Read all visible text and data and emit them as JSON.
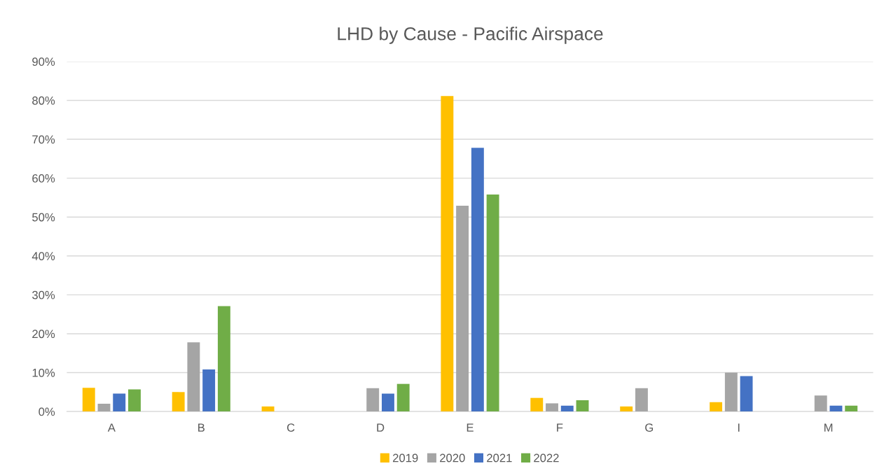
{
  "chart_data": {
    "type": "bar",
    "title": "LHD by Cause - Pacific Airspace",
    "categories": [
      "A",
      "B",
      "C",
      "D",
      "E",
      "F",
      "G",
      "I",
      "M"
    ],
    "series": [
      {
        "name": "2019",
        "color": "#ffc000",
        "values": [
          6.1,
          5.0,
          1.3,
          null,
          81.1,
          3.5,
          1.3,
          2.4,
          null
        ]
      },
      {
        "name": "2020",
        "color": "#a5a5a5",
        "values": [
          2.0,
          17.8,
          null,
          6.0,
          52.9,
          2.1,
          6.0,
          10.0,
          4.1
        ]
      },
      {
        "name": "2021",
        "color": "#4472c4",
        "values": [
          4.6,
          10.8,
          null,
          4.6,
          67.8,
          1.5,
          null,
          9.1,
          1.5
        ]
      },
      {
        "name": "2022",
        "color": "#70ad47",
        "values": [
          5.7,
          27.1,
          null,
          7.1,
          55.8,
          2.9,
          null,
          null,
          1.5
        ]
      }
    ],
    "ylim": [
      0,
      90
    ],
    "yticks": [
      {
        "value": 0,
        "label": "0%"
      },
      {
        "value": 10,
        "label": "10%"
      },
      {
        "value": 20,
        "label": "20%"
      },
      {
        "value": 30,
        "label": "30%"
      },
      {
        "value": 40,
        "label": "40%"
      },
      {
        "value": 50,
        "label": "50%"
      },
      {
        "value": 60,
        "label": "60%"
      },
      {
        "value": 70,
        "label": "70%"
      },
      {
        "value": 80,
        "label": "80%"
      },
      {
        "value": 90,
        "label": "90%"
      }
    ],
    "grid": "y",
    "legend": "bottom"
  }
}
